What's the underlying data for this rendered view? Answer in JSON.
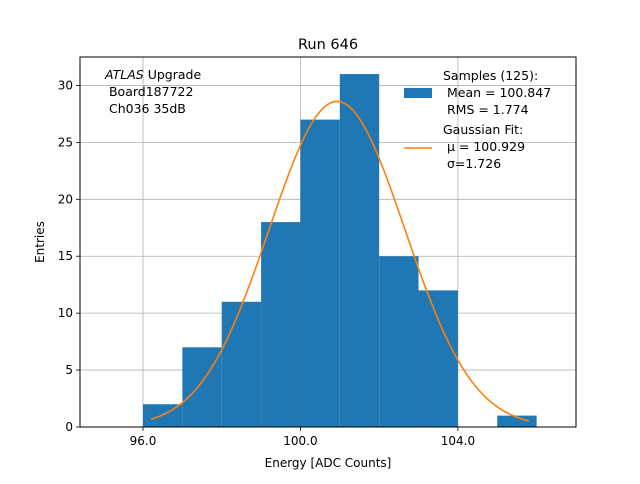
{
  "chart_data": {
    "type": "bar",
    "title": "Run 646",
    "xlabel": "Energy [ADC Counts]",
    "ylabel": "Entries",
    "xlim": [
      94.4,
      107.0
    ],
    "ylim": [
      0,
      32.5
    ],
    "grid": true,
    "x_ticks": [
      96.0,
      100.0,
      104.0
    ],
    "x_tick_labels": [
      "96.0",
      "100.0",
      "104.0"
    ],
    "y_ticks": [
      0,
      5,
      10,
      15,
      20,
      25,
      30
    ],
    "y_tick_labels": [
      "0",
      "5",
      "10",
      "15",
      "20",
      "25",
      "30"
    ],
    "histogram": {
      "name": "Samples",
      "color": "#1f77b4",
      "bins": [
        {
          "x0": 96.0,
          "x1": 97.0,
          "value": 2
        },
        {
          "x0": 97.0,
          "x1": 98.0,
          "value": 7
        },
        {
          "x0": 98.0,
          "x1": 99.0,
          "value": 11
        },
        {
          "x0": 99.0,
          "x1": 100.0,
          "value": 18
        },
        {
          "x0": 100.0,
          "x1": 101.0,
          "value": 27
        },
        {
          "x0": 101.0,
          "x1": 102.0,
          "value": 31
        },
        {
          "x0": 102.0,
          "x1": 103.0,
          "value": 15
        },
        {
          "x0": 103.0,
          "x1": 104.0,
          "value": 12
        },
        {
          "x0": 104.0,
          "x1": 105.0,
          "value": 0
        },
        {
          "x0": 105.0,
          "x1": 106.0,
          "value": 1
        }
      ]
    },
    "fit": {
      "name": "Gaussian Fit",
      "color": "#ff7f0e",
      "mu": 100.929,
      "sigma": 1.726,
      "amplitude": 28.6,
      "x_range": [
        96.2,
        105.8
      ]
    },
    "legend": {
      "placement": "top-right",
      "entries": [
        {
          "kind": "patch",
          "lines": [
            "Samples (125):",
            " Mean = 100.847",
            " RMS = 1.774"
          ]
        },
        {
          "kind": "line",
          "lines": [
            "Gaussian Fit:",
            " μ = 100.929",
            " σ=1.726"
          ]
        }
      ]
    },
    "annotation": {
      "italic": "ATLAS",
      "rest": " Upgrade",
      "lines": [
        " Board187722",
        " Ch036 35dB"
      ]
    }
  }
}
